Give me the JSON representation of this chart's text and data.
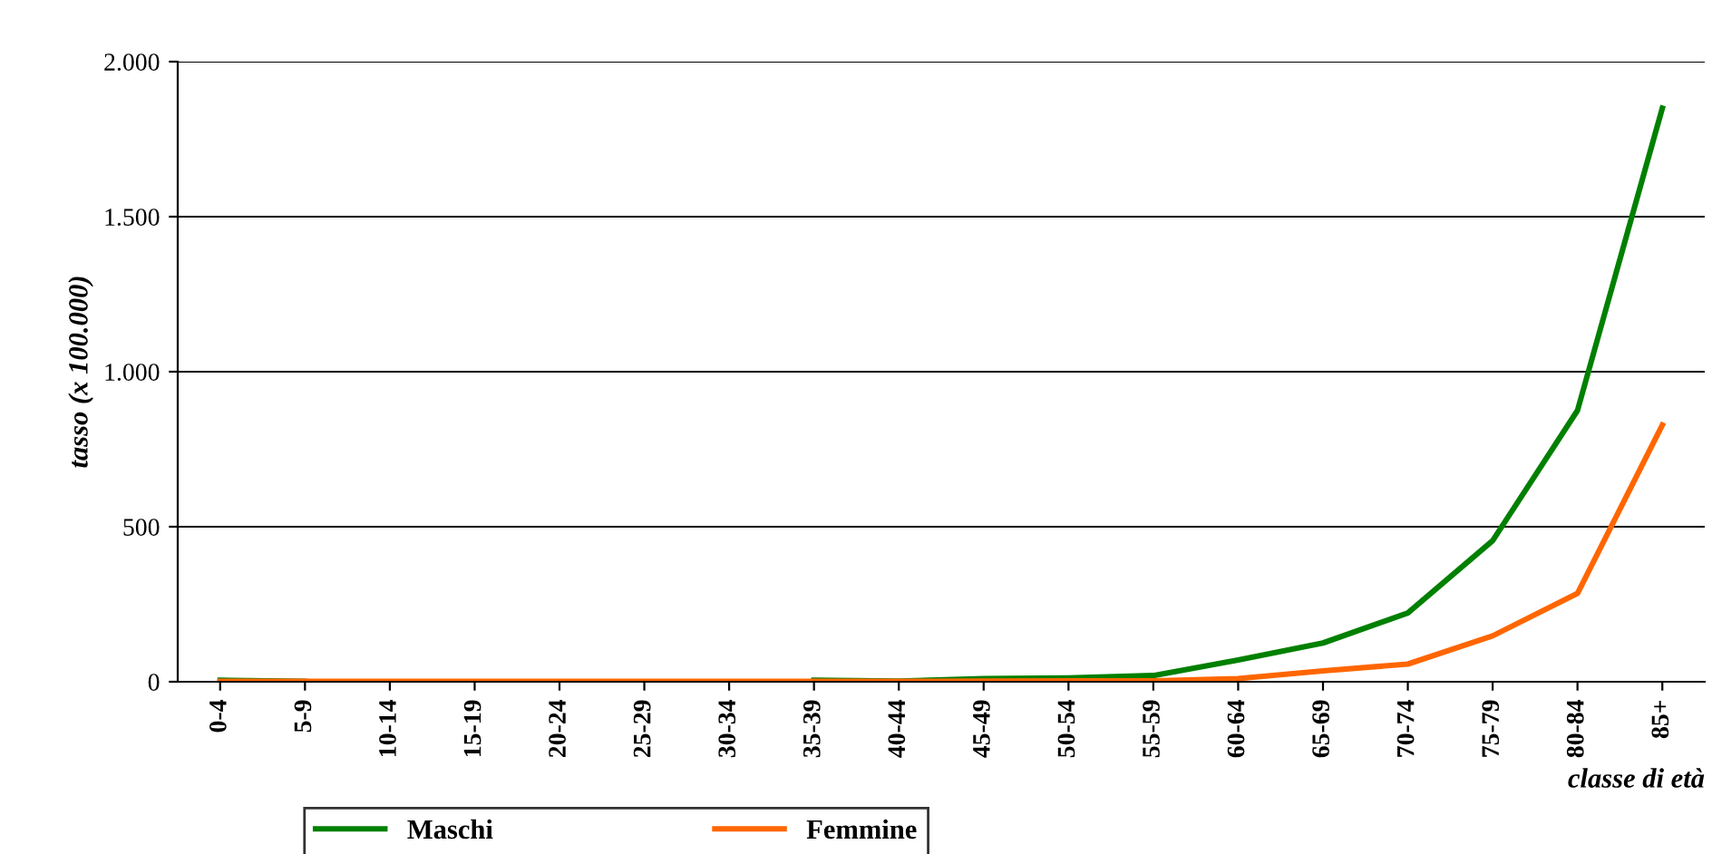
{
  "chart_data": {
    "type": "line",
    "xlabel": "classe di età",
    "ylabel": "tasso (x 100.000)",
    "categories": [
      "0-4",
      "5-9",
      "10-14",
      "15-19",
      "20-24",
      "25-29",
      "30-34",
      "35-39",
      "40-44",
      "45-49",
      "50-54",
      "55-59",
      "60-64",
      "65-69",
      "70-74",
      "75-79",
      "80-84",
      "85+"
    ],
    "series": [
      {
        "name": "Maschi",
        "color": "#008000",
        "values": [
          5,
          1,
          null,
          null,
          null,
          null,
          null,
          5,
          2,
          10,
          12,
          20,
          70,
          125,
          222,
          455,
          875,
          1850
        ]
      },
      {
        "name": "Femmine",
        "color": "#ff6600",
        "values": [
          1,
          1,
          1,
          1,
          1,
          1,
          1,
          1,
          1,
          2,
          3,
          3,
          10,
          35,
          57,
          148,
          285,
          828
        ]
      }
    ],
    "ylim": [
      0,
      2000
    ],
    "yticks": [
      0,
      {
        "value": 500,
        "label": "500"
      },
      {
        "value": 1000,
        "label": "1.000"
      },
      {
        "value": 1500,
        "label": "1.500"
      },
      {
        "value": 2000,
        "label": "2.000"
      }
    ],
    "grid": "y",
    "legend": "bottom",
    "marker": "none",
    "line_style": "solid"
  }
}
